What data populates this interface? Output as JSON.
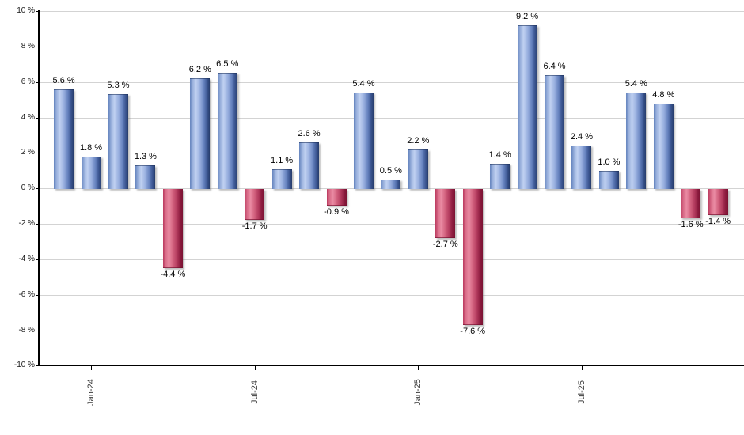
{
  "chart_data": {
    "type": "bar",
    "title": "",
    "unit": "%",
    "ylim": [
      -10,
      10
    ],
    "ytick_step": 2,
    "grid": true,
    "legend": "none",
    "yticks": [
      {
        "value": 10,
        "label": "10 %"
      },
      {
        "value": 8,
        "label": "8 %"
      },
      {
        "value": 6,
        "label": "6 %"
      },
      {
        "value": 4,
        "label": "4 %"
      },
      {
        "value": 2,
        "label": "2 %"
      },
      {
        "value": 0,
        "label": "0 %"
      },
      {
        "value": -2,
        "label": "-2 %"
      },
      {
        "value": -4,
        "label": "-4 %"
      },
      {
        "value": -6,
        "label": "-6 %"
      },
      {
        "value": -8,
        "label": "-8 %"
      },
      {
        "value": -10,
        "label": "-10 %"
      }
    ],
    "bars": [
      {
        "value": 5.6,
        "label": "5.6 %"
      },
      {
        "value": 1.8,
        "label": "1.8 %"
      },
      {
        "value": 5.3,
        "label": "5.3 %"
      },
      {
        "value": 1.3,
        "label": "1.3 %"
      },
      {
        "value": -4.4,
        "label": "-4.4 %"
      },
      {
        "value": 6.2,
        "label": "6.2 %"
      },
      {
        "value": 6.5,
        "label": "6.5 %"
      },
      {
        "value": -1.7,
        "label": "-1.7 %"
      },
      {
        "value": 1.1,
        "label": "1.1 %"
      },
      {
        "value": 2.6,
        "label": "2.6 %"
      },
      {
        "value": -0.9,
        "label": "-0.9 %"
      },
      {
        "value": 5.4,
        "label": "5.4 %"
      },
      {
        "value": 0.5,
        "label": "0.5 %"
      },
      {
        "value": 2.2,
        "label": "2.2 %"
      },
      {
        "value": -2.7,
        "label": "-2.7 %"
      },
      {
        "value": -7.6,
        "label": "-7.6 %"
      },
      {
        "value": 1.4,
        "label": "1.4 %"
      },
      {
        "value": 9.2,
        "label": "9.2 %"
      },
      {
        "value": 6.4,
        "label": "6.4 %"
      },
      {
        "value": 2.4,
        "label": "2.4 %"
      },
      {
        "value": 1.0,
        "label": "1.0 %"
      },
      {
        "value": 5.4,
        "label": "5.4 %"
      },
      {
        "value": 4.8,
        "label": "4.8 %"
      },
      {
        "value": -1.6,
        "label": "-1.6 %"
      },
      {
        "value": -1.4,
        "label": "-1.4 %"
      }
    ],
    "xticks": [
      {
        "bar_index": 1,
        "label": "Jan-24"
      },
      {
        "bar_index": 7,
        "label": "Jul-24"
      },
      {
        "bar_index": 13,
        "label": "Jan-25"
      },
      {
        "bar_index": 19,
        "label": "Jul-25"
      }
    ],
    "colors": {
      "positive_bar": "#88a4d8",
      "positive_gradient": [
        [
          "0",
          "#6483bd"
        ],
        [
          "14",
          "#9ab1dd"
        ],
        [
          "30",
          "#c0d1f1"
        ],
        [
          "50",
          "#9bb1e0"
        ],
        [
          "70",
          "#6884c0"
        ],
        [
          "86",
          "#3d5894"
        ],
        [
          "100",
          "#263c6b"
        ]
      ],
      "negative_bar": "#c84a6b",
      "negative_gradient": [
        [
          "0",
          "#bb3a5f"
        ],
        [
          "14",
          "#d96d89"
        ],
        [
          "30",
          "#ea8ba3"
        ],
        [
          "50",
          "#d2617e"
        ],
        [
          "70",
          "#b33b5e"
        ],
        [
          "86",
          "#8d1c3f"
        ],
        [
          "100",
          "#7a1232"
        ]
      ],
      "gridline": "#d3d3d3",
      "axis": "#000000",
      "value_label": "#000000",
      "axis_label": "#1a1a1a",
      "x_label": "#3a3a3a",
      "background": "#ffffff"
    }
  }
}
